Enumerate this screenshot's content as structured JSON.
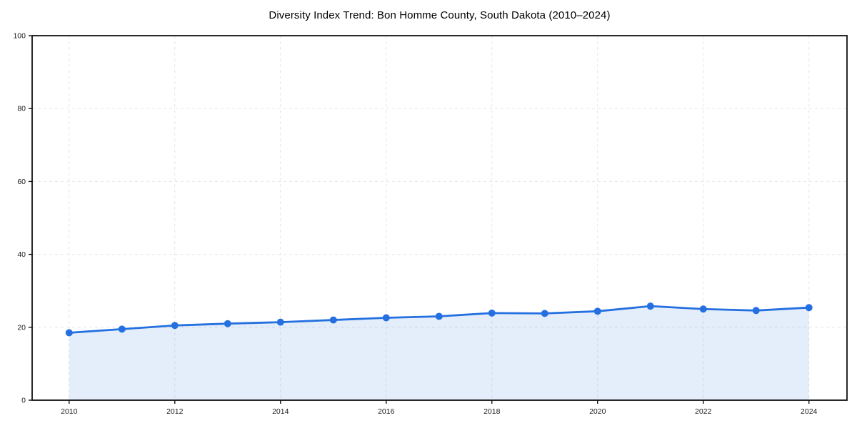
{
  "chart_data": {
    "type": "line",
    "title": "Diversity Index Trend: Bon Homme County, South Dakota (2010–2024)",
    "xlabel": "",
    "ylabel": "",
    "x": [
      2010,
      2011,
      2012,
      2013,
      2014,
      2015,
      2016,
      2017,
      2018,
      2019,
      2020,
      2021,
      2022,
      2023,
      2024
    ],
    "values": [
      18.5,
      19.5,
      20.5,
      21.0,
      21.4,
      22.0,
      22.6,
      23.0,
      23.9,
      23.8,
      24.4,
      25.8,
      25.0,
      24.6,
      25.4
    ],
    "xlim": [
      2009.3,
      2024.72
    ],
    "ylim": [
      0,
      100
    ],
    "x_ticks": [
      2010,
      2012,
      2014,
      2016,
      2018,
      2020,
      2022,
      2024
    ],
    "x_tick_labels": [
      "2010",
      "2012",
      "2014",
      "2016",
      "2018",
      "2020",
      "2022",
      "2024"
    ],
    "y_ticks": [
      0,
      20,
      40,
      60,
      80,
      100
    ],
    "y_tick_labels": [
      "0",
      "20",
      "40",
      "60",
      "80",
      "100"
    ],
    "grid": true,
    "grid_style": "dashed",
    "legend": false,
    "area_fill": true,
    "marker": "circle",
    "style": {
      "line_color": "#2570e0",
      "marker_color": "#2570e0",
      "fill_color": "#2570e0",
      "fill_opacity": 0.12,
      "grid_color": "#e5e5e5",
      "axis_color": "#111111",
      "tick_color": "#111111",
      "tick_label_color": "#1a1a1a",
      "title_color": "#000000"
    }
  }
}
